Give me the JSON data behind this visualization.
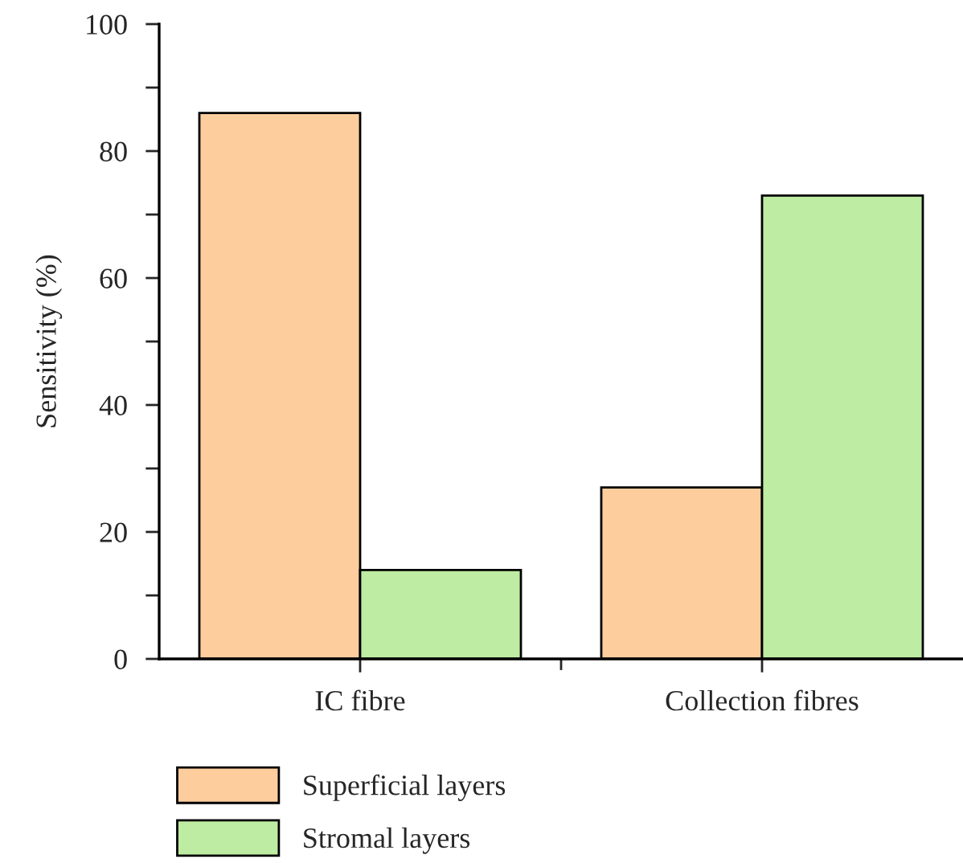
{
  "chart_data": {
    "type": "bar",
    "ylabel": "Sensitivity (%)",
    "categories": [
      "IC fibre",
      "Collection fibres"
    ],
    "series": [
      {
        "name": "Superficial layers",
        "color": "#fdcd9e",
        "values": [
          86,
          27
        ]
      },
      {
        "name": "Stromal layers",
        "color": "#bdeca2",
        "values": [
          14,
          73
        ]
      }
    ],
    "ylim": [
      0,
      100
    ],
    "yticks": [
      0,
      {
        "value": 10,
        "label": null
      },
      20,
      {
        "value": 30,
        "label": null
      },
      40,
      {
        "value": 50,
        "label": null
      },
      60,
      {
        "value": 70,
        "label": null
      },
      80,
      {
        "value": 90,
        "label": null
      },
      100
    ],
    "grid": false,
    "legend": "bottom left"
  }
}
